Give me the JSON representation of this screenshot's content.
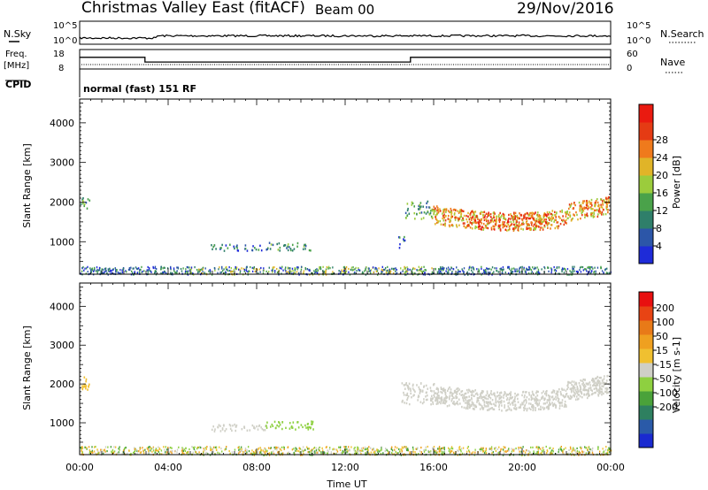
{
  "header": {
    "site": "Christmas Valley East (fitACF)",
    "beam": "Beam 00",
    "date": "29/Nov/2016"
  },
  "top_panels": {
    "nsky": {
      "label": "N.Sky",
      "tick_hi": "10^5",
      "tick_lo": "10^0",
      "right_label": "N.Search",
      "right_tick_hi": "10^5",
      "right_tick_lo": "10^0"
    },
    "freq": {
      "label_line1": "Freq.",
      "label_line2": "[MHz]",
      "tick_hi": "18",
      "tick_lo": "8",
      "right_label": "Nave",
      "right_tick_hi": "60",
      "right_tick_lo": "0",
      "steps": [
        {
          "from": 0,
          "to": 2.95,
          "value": 14
        },
        {
          "from": 2.95,
          "to": 14.95,
          "value": 11.6
        },
        {
          "from": 14.95,
          "to": 24,
          "value": 14
        }
      ]
    },
    "cpid": {
      "label": "CPID",
      "text": "normal (fast) 151 RF"
    }
  },
  "chart_data": [
    {
      "type": "heatmap",
      "name": "power",
      "ylabel": "Slant Range [km]",
      "yticks": [
        1000,
        2000,
        3000,
        4000
      ],
      "ylim": [
        180,
        4600
      ],
      "xlim": [
        0,
        24
      ],
      "colorbar": {
        "label": "Power [dB]",
        "ticks": [
          "4",
          "8",
          "12",
          "16",
          "20",
          "24",
          "28"
        ],
        "colors": [
          "#1e2bd8",
          "#2c56a8",
          "#2f7f6a",
          "#4aa24a",
          "#9bcc3c",
          "#e0b428",
          "#ef7a1c",
          "#e53b14",
          "#ea1a10"
        ]
      },
      "features": [
        {
          "t0": 0.0,
          "t1": 0.45,
          "r0": 1820,
          "r1": 2150,
          "level": 3
        },
        {
          "t0": 5.9,
          "t1": 8.4,
          "r0": 790,
          "r1": 950,
          "level": 2
        },
        {
          "t0": 8.4,
          "t1": 10.5,
          "r0": 800,
          "r1": 1000,
          "level": 3
        },
        {
          "t0": 14.4,
          "t1": 14.7,
          "r0": 820,
          "r1": 1150,
          "level": 2
        },
        {
          "t0": 14.7,
          "t1": 15.9,
          "r0": 1600,
          "r1": 2050,
          "level": 3
        },
        {
          "t0": 15.9,
          "t1": 23.9,
          "r0": 1300,
          "r1": 2250,
          "level": 6
        },
        {
          "t0": 17.5,
          "t1": 21.2,
          "r0": 1300,
          "r1": 1650,
          "level": 8
        }
      ]
    },
    {
      "type": "heatmap",
      "name": "velocity",
      "ylabel": "Slant Range [km]",
      "xlabel": "Time UT",
      "xticks": [
        "00:00",
        "04:00",
        "08:00",
        "12:00",
        "16:00",
        "20:00",
        "00:00"
      ],
      "yticks": [
        1000,
        2000,
        3000,
        4000
      ],
      "ylim": [
        180,
        4600
      ],
      "xlim": [
        0,
        24
      ],
      "colorbar": {
        "label": "Velocity [m s-1]",
        "ticks": [
          "200",
          "100",
          "50",
          "15",
          "-15",
          "-50",
          "-100",
          "-200"
        ],
        "colors": [
          "#1a2ad0",
          "#2a5aa8",
          "#2e8060",
          "#4aa23a",
          "#8ed040",
          "#cfcfc6",
          "#f0c030",
          "#efa020",
          "#e87a18",
          "#e84414",
          "#e81010"
        ]
      },
      "features": [
        {
          "t0": 0.0,
          "t1": 0.45,
          "r0": 1850,
          "r1": 2200,
          "color": "#f0c030"
        },
        {
          "t0": 5.9,
          "t1": 8.4,
          "r0": 800,
          "r1": 980,
          "color": "#cfcfc6"
        },
        {
          "t0": 8.4,
          "t1": 10.6,
          "r0": 850,
          "r1": 1060,
          "color": "#8ed040"
        },
        {
          "t0": 14.5,
          "t1": 16.0,
          "r0": 1500,
          "r1": 2050,
          "color": "#cfcfc6"
        },
        {
          "t0": 16.0,
          "t1": 23.9,
          "r0": 1350,
          "r1": 2300,
          "color": "#cfcfc6"
        }
      ]
    }
  ]
}
